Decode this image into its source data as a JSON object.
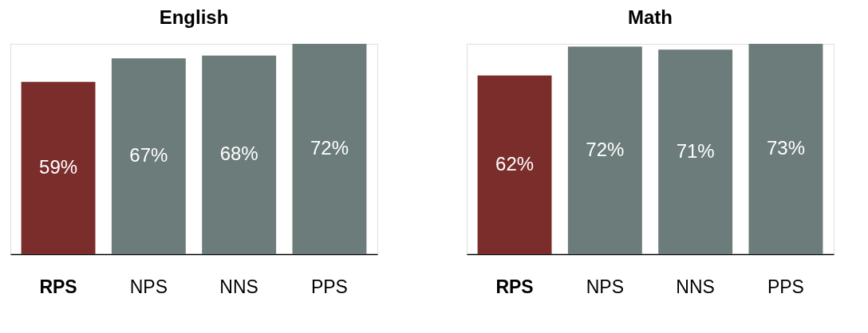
{
  "chart_data": [
    {
      "type": "bar",
      "title": "English",
      "categories": [
        "RPS",
        "NPS",
        "NNS",
        "PPS"
      ],
      "values": [
        59,
        67,
        68,
        72
      ],
      "colors": [
        "#7b2d2b",
        "#6b7c7a",
        "#6b7c7a",
        "#6b7c7a"
      ],
      "value_labels": [
        "59%",
        "67%",
        "68%",
        "72%"
      ]
    },
    {
      "type": "bar",
      "title": "Math",
      "categories": [
        "RPS",
        "NPS",
        "NNS",
        "PPS"
      ],
      "values": [
        62,
        72,
        71,
        73
      ],
      "colors": [
        "#7b2d2b",
        "#6b7c7a",
        "#6b7c7a",
        "#6b7c7a"
      ],
      "value_labels": [
        "62%",
        "72%",
        "71%",
        "73%"
      ]
    }
  ]
}
